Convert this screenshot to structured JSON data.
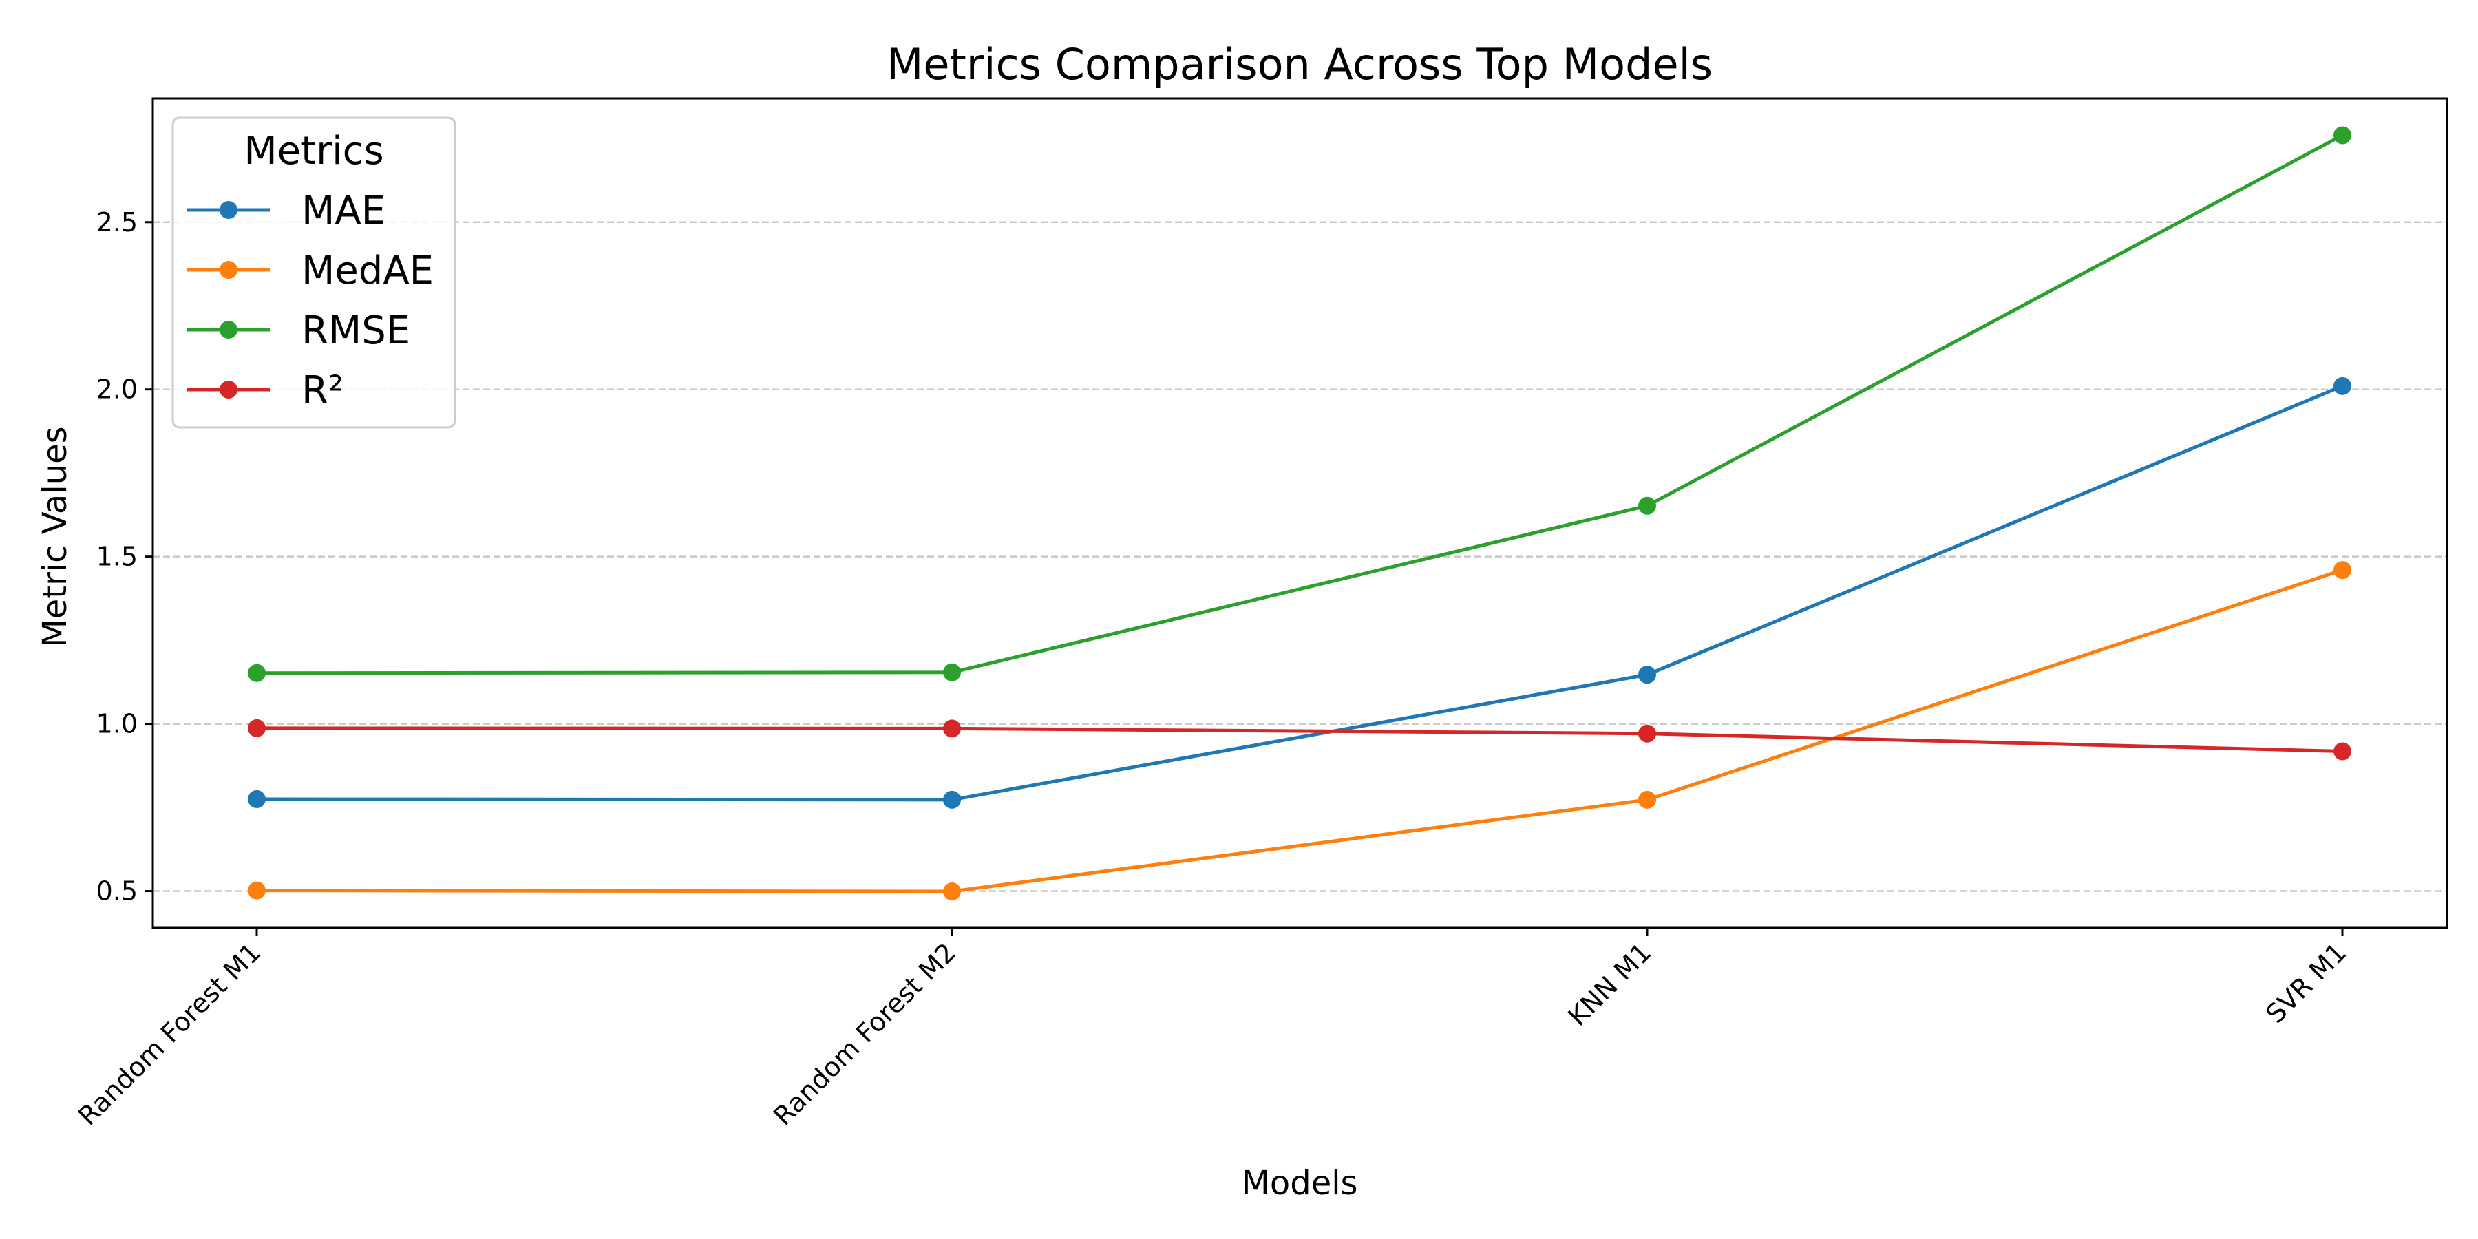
{
  "chart_data": {
    "type": "line",
    "title": "Metrics Comparison Across Top Models",
    "xlabel": "Models",
    "ylabel": "Metric Values",
    "categories": [
      "Random Forest M1",
      "Random Forest M2",
      "KNN M1",
      "SVR M1"
    ],
    "ylim": [
      0.39,
      2.87
    ],
    "yticks": [
      0.5,
      1.0,
      1.5,
      2.0,
      2.5
    ],
    "ytick_labels": [
      "0.5",
      "1.0",
      "1.5",
      "2.0",
      "2.5"
    ],
    "grid": "horizontal dashed",
    "legend": {
      "title": "Metrics",
      "placement": "top-left"
    },
    "series": [
      {
        "name": "MAE",
        "color": "#1f77b4",
        "values": [
          0.775,
          0.773,
          1.147,
          2.01
        ]
      },
      {
        "name": "MedAE",
        "color": "#ff7f0e",
        "values": [
          0.502,
          0.499,
          0.773,
          1.46
        ]
      },
      {
        "name": "RMSE",
        "color": "#2ca02c",
        "values": [
          1.152,
          1.154,
          1.652,
          2.76
        ]
      },
      {
        "name": "R²",
        "color": "#d62728",
        "values": [
          0.987,
          0.986,
          0.971,
          0.918
        ]
      }
    ]
  }
}
